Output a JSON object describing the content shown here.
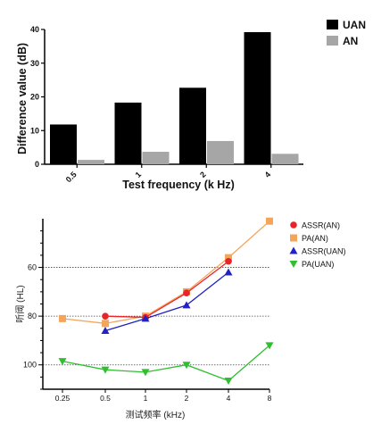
{
  "chart_data": [
    {
      "type": "bar",
      "title": "",
      "xlabel": "Test  frequency (k Hz)",
      "ylabel": "Difference value (dB)",
      "ylim": [
        0,
        40
      ],
      "yticks": [
        0,
        10,
        20,
        30,
        40
      ],
      "categories": [
        "0.5",
        "1",
        "2",
        "4"
      ],
      "series": [
        {
          "name": "UAN",
          "color": "#000000",
          "values": [
            11.8,
            18.3,
            22.7,
            39.2
          ]
        },
        {
          "name": "AN",
          "color": "#a6a6a6",
          "values": [
            1.3,
            3.7,
            6.9,
            3.1
          ]
        }
      ],
      "legend_position": "top-right",
      "grid": false
    },
    {
      "type": "line",
      "title": "",
      "xlabel": "测试频率 (kHz)",
      "ylabel": "听阈 (HL)",
      "ylim": [
        40,
        110
      ],
      "y_inverted": true,
      "yticks": [
        60,
        80,
        100
      ],
      "categories": [
        "0.25",
        "0.5",
        "1",
        "2",
        "4",
        "8"
      ],
      "series": [
        {
          "name": "ASSR(AN)",
          "color": "#e8232a",
          "marker": "circle",
          "values": [
            null,
            80,
            80.5,
            70.5,
            57.5,
            null
          ]
        },
        {
          "name": "PA(AN)",
          "color": "#f5a55a",
          "marker": "square",
          "values": [
            81,
            83,
            80,
            70,
            56,
            41
          ]
        },
        {
          "name": "ASSR(UAN)",
          "color": "#2121c8",
          "marker": "triangle-up",
          "values": [
            null,
            86,
            81,
            75.5,
            62,
            null
          ]
        },
        {
          "name": "PA(UAN)",
          "color": "#2fbf2f",
          "marker": "triangle-down",
          "values": [
            98.5,
            102,
            103,
            100,
            106.5,
            92
          ]
        }
      ],
      "reference_lines": [
        60,
        80,
        100
      ],
      "legend_position": "right",
      "grid": true
    }
  ]
}
